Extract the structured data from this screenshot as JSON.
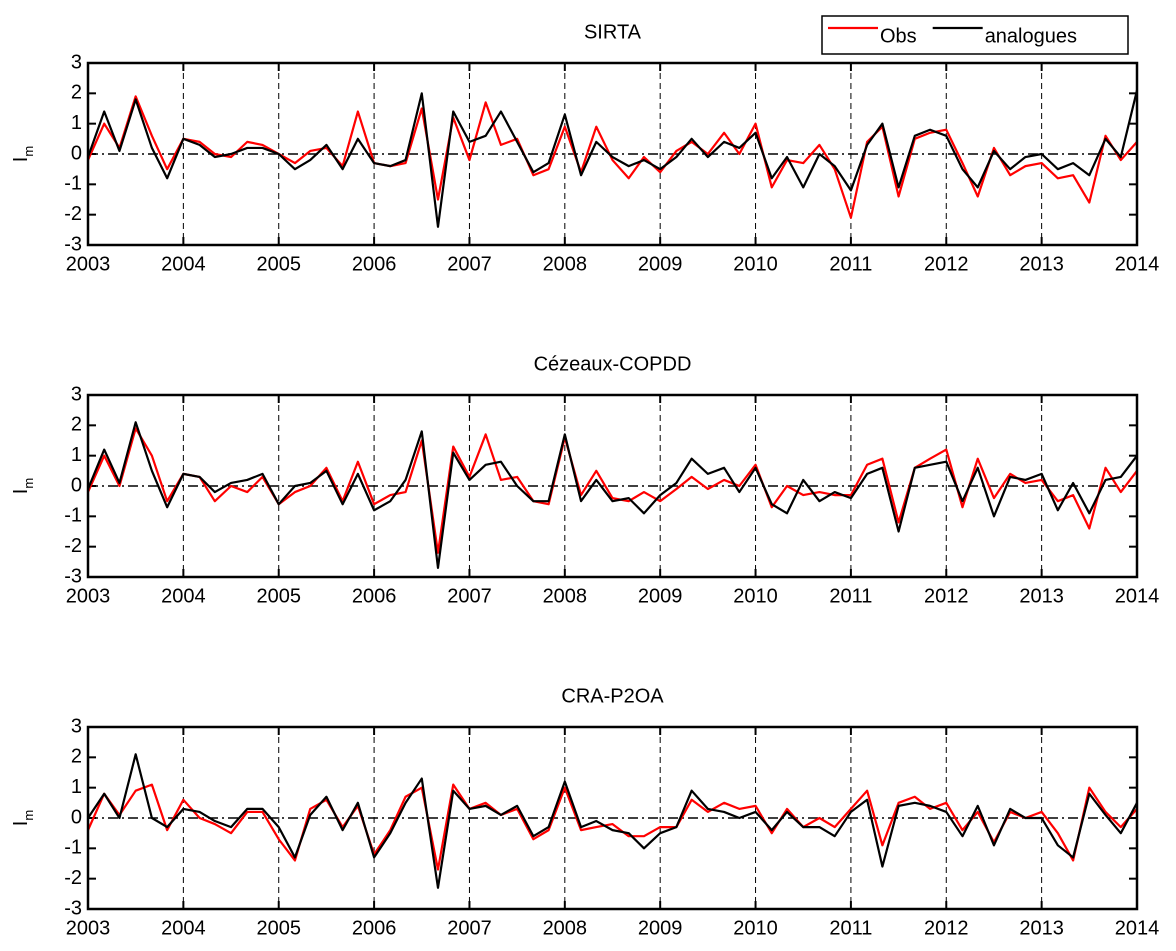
{
  "chart_data": [
    {
      "type": "line",
      "title": "SIRTA",
      "ylabel": "I",
      "ylabel_sub": "m",
      "legend": "top-right",
      "xlim": [
        2003,
        2014
      ],
      "xticks": [
        2003,
        2004,
        2005,
        2006,
        2007,
        2008,
        2009,
        2010,
        2011,
        2012,
        2013,
        2014
      ],
      "ylim": [
        -3,
        3
      ],
      "yticks": [
        -3,
        -2,
        -1,
        0,
        1,
        2,
        3
      ],
      "grid": true,
      "hline": 0,
      "x": [
        2003,
        2003.17,
        2003.33,
        2003.5,
        2003.67,
        2003.83,
        2004,
        2004.17,
        2004.33,
        2004.5,
        2004.67,
        2004.83,
        2005,
        2005.17,
        2005.33,
        2005.5,
        2005.67,
        2005.83,
        2006,
        2006.17,
        2006.33,
        2006.5,
        2006.67,
        2006.83,
        2007,
        2007.17,
        2007.33,
        2007.5,
        2007.67,
        2007.83,
        2008,
        2008.17,
        2008.33,
        2008.5,
        2008.67,
        2008.83,
        2009,
        2009.17,
        2009.33,
        2009.5,
        2009.67,
        2009.83,
        2010,
        2010.17,
        2010.33,
        2010.5,
        2010.67,
        2010.83,
        2011,
        2011.17,
        2011.33,
        2011.5,
        2011.67,
        2011.83,
        2012,
        2012.17,
        2012.33,
        2012.5,
        2012.67,
        2012.83,
        2013,
        2013.17,
        2013.33,
        2013.5,
        2013.67,
        2013.83,
        2014
      ],
      "series": [
        {
          "name": "Obs",
          "color": "#ff0000",
          "values": [
            -0.2,
            1.0,
            0.2,
            1.9,
            0.6,
            -0.5,
            0.5,
            0.4,
            0.0,
            -0.1,
            0.4,
            0.3,
            0.0,
            -0.3,
            0.1,
            0.2,
            -0.4,
            1.4,
            -0.3,
            -0.4,
            -0.3,
            1.5,
            -1.5,
            1.2,
            -0.2,
            1.7,
            0.3,
            0.5,
            -0.7,
            -0.5,
            0.9,
            -0.6,
            0.9,
            -0.2,
            -0.8,
            -0.1,
            -0.6,
            0.1,
            0.4,
            0.0,
            0.7,
            0.0,
            1.0,
            -1.1,
            -0.2,
            -0.3,
            0.3,
            -0.5,
            -2.1,
            0.4,
            0.9,
            -1.4,
            0.5,
            0.7,
            0.8,
            -0.3,
            -1.4,
            0.2,
            -0.7,
            -0.4,
            -0.3,
            -0.8,
            -0.7,
            -1.6,
            0.6,
            -0.2,
            0.4
          ]
        },
        {
          "name": "analogues",
          "color": "#000000",
          "values": [
            -0.1,
            1.4,
            0.1,
            1.8,
            0.2,
            -0.8,
            0.5,
            0.3,
            -0.1,
            0.0,
            0.2,
            0.2,
            0.0,
            -0.5,
            -0.2,
            0.3,
            -0.5,
            0.5,
            -0.3,
            -0.4,
            -0.2,
            2.0,
            -2.4,
            1.4,
            0.4,
            0.6,
            1.4,
            0.4,
            -0.6,
            -0.3,
            1.3,
            -0.7,
            0.4,
            -0.1,
            -0.4,
            -0.2,
            -0.5,
            -0.1,
            0.5,
            -0.1,
            0.4,
            0.2,
            0.7,
            -0.8,
            -0.1,
            -1.1,
            0.0,
            -0.4,
            -1.2,
            0.3,
            1.0,
            -1.1,
            0.6,
            0.8,
            0.6,
            -0.5,
            -1.1,
            0.1,
            -0.5,
            -0.1,
            0.0,
            -0.5,
            -0.3,
            -0.7,
            0.5,
            -0.1,
            2.1
          ]
        }
      ]
    },
    {
      "type": "line",
      "title": "Cézeaux-COPDD",
      "ylabel": "I",
      "ylabel_sub": "m",
      "xlim": [
        2003,
        2014
      ],
      "xticks": [
        2003,
        2004,
        2005,
        2006,
        2007,
        2008,
        2009,
        2010,
        2011,
        2012,
        2013,
        2014
      ],
      "ylim": [
        -3,
        3
      ],
      "yticks": [
        -3,
        -2,
        -1,
        0,
        1,
        2,
        3
      ],
      "grid": true,
      "hline": 0,
      "x": [
        2003,
        2003.17,
        2003.33,
        2003.5,
        2003.67,
        2003.83,
        2004,
        2004.17,
        2004.33,
        2004.5,
        2004.67,
        2004.83,
        2005,
        2005.17,
        2005.33,
        2005.5,
        2005.67,
        2005.83,
        2006,
        2006.17,
        2006.33,
        2006.5,
        2006.67,
        2006.83,
        2007,
        2007.17,
        2007.33,
        2007.5,
        2007.67,
        2007.83,
        2008,
        2008.17,
        2008.33,
        2008.5,
        2008.67,
        2008.83,
        2009,
        2009.17,
        2009.33,
        2009.5,
        2009.67,
        2009.83,
        2010,
        2010.17,
        2010.33,
        2010.5,
        2010.67,
        2010.83,
        2011,
        2011.17,
        2011.33,
        2011.5,
        2011.67,
        2011.83,
        2012,
        2012.17,
        2012.33,
        2012.5,
        2012.67,
        2012.83,
        2013,
        2013.17,
        2013.33,
        2013.5,
        2013.67,
        2013.83,
        2014
      ],
      "series": [
        {
          "name": "Obs",
          "color": "#ff0000",
          "values": [
            -0.2,
            1.0,
            0.0,
            1.9,
            1.0,
            -0.5,
            0.4,
            0.3,
            -0.5,
            0.0,
            -0.2,
            0.3,
            -0.6,
            -0.2,
            0.0,
            0.6,
            -0.5,
            0.8,
            -0.6,
            -0.3,
            -0.2,
            1.5,
            -2.2,
            1.3,
            0.3,
            1.7,
            0.2,
            0.3,
            -0.5,
            -0.6,
            1.6,
            -0.3,
            0.5,
            -0.4,
            -0.5,
            -0.2,
            -0.5,
            -0.1,
            0.3,
            -0.1,
            0.2,
            0.0,
            0.7,
            -0.7,
            0.0,
            -0.3,
            -0.2,
            -0.3,
            -0.3,
            0.7,
            0.9,
            -1.2,
            0.6,
            0.9,
            1.2,
            -0.7,
            0.9,
            -0.4,
            0.4,
            0.1,
            0.2,
            -0.5,
            -0.3,
            -1.4,
            0.6,
            -0.2,
            0.5
          ]
        },
        {
          "name": "analogues",
          "color": "#000000",
          "values": [
            -0.1,
            1.2,
            0.1,
            2.1,
            0.5,
            -0.7,
            0.4,
            0.3,
            -0.2,
            0.1,
            0.2,
            0.4,
            -0.6,
            0.0,
            0.1,
            0.5,
            -0.6,
            0.4,
            -0.8,
            -0.5,
            0.2,
            1.8,
            -2.7,
            1.1,
            0.2,
            0.7,
            0.8,
            0.0,
            -0.5,
            -0.5,
            1.7,
            -0.5,
            0.2,
            -0.5,
            -0.4,
            -0.9,
            -0.3,
            0.1,
            0.9,
            0.4,
            0.6,
            -0.2,
            0.6,
            -0.6,
            -0.9,
            0.2,
            -0.5,
            -0.2,
            -0.4,
            0.4,
            0.6,
            -1.5,
            0.6,
            0.7,
            0.8,
            -0.5,
            0.6,
            -1.0,
            0.3,
            0.2,
            0.4,
            -0.8,
            0.1,
            -0.9,
            0.2,
            0.3,
            1.0
          ]
        }
      ]
    },
    {
      "type": "line",
      "title": "CRA-P2OA",
      "ylabel": "I",
      "ylabel_sub": "m",
      "xlim": [
        2003,
        2014
      ],
      "xticks": [
        2003,
        2004,
        2005,
        2006,
        2007,
        2008,
        2009,
        2010,
        2011,
        2012,
        2013,
        2014
      ],
      "ylim": [
        -3,
        3
      ],
      "yticks": [
        -3,
        -2,
        -1,
        0,
        1,
        2,
        3
      ],
      "grid": true,
      "hline": 0,
      "x": [
        2003,
        2003.17,
        2003.33,
        2003.5,
        2003.67,
        2003.83,
        2004,
        2004.17,
        2004.33,
        2004.5,
        2004.67,
        2004.83,
        2005,
        2005.17,
        2005.33,
        2005.5,
        2005.67,
        2005.83,
        2006,
        2006.17,
        2006.33,
        2006.5,
        2006.67,
        2006.83,
        2007,
        2007.17,
        2007.33,
        2007.5,
        2007.67,
        2007.83,
        2008,
        2008.17,
        2008.33,
        2008.5,
        2008.67,
        2008.83,
        2009,
        2009.17,
        2009.33,
        2009.5,
        2009.67,
        2009.83,
        2010,
        2010.17,
        2010.33,
        2010.5,
        2010.67,
        2010.83,
        2011,
        2011.17,
        2011.33,
        2011.5,
        2011.67,
        2011.83,
        2012,
        2012.17,
        2012.33,
        2012.5,
        2012.67,
        2012.83,
        2013,
        2013.17,
        2013.33,
        2013.5,
        2013.67,
        2013.83,
        2014
      ],
      "series": [
        {
          "name": "Obs",
          "color": "#ff0000",
          "values": [
            -0.4,
            0.8,
            0.1,
            0.9,
            1.1,
            -0.4,
            0.6,
            0.0,
            -0.2,
            -0.5,
            0.2,
            0.2,
            -0.7,
            -1.4,
            0.3,
            0.6,
            -0.3,
            0.4,
            -1.2,
            -0.4,
            0.7,
            1.0,
            -1.7,
            1.1,
            0.3,
            0.5,
            0.1,
            0.3,
            -0.7,
            -0.4,
            1.0,
            -0.4,
            -0.3,
            -0.2,
            -0.6,
            -0.6,
            -0.3,
            -0.3,
            0.6,
            0.2,
            0.5,
            0.3,
            0.4,
            -0.5,
            0.3,
            -0.3,
            0.0,
            -0.3,
            0.3,
            0.9,
            -0.9,
            0.5,
            0.7,
            0.3,
            0.5,
            -0.4,
            0.2,
            -0.8,
            0.2,
            0.0,
            0.2,
            -0.5,
            -1.4,
            1.0,
            0.2,
            -0.3,
            0.3
          ]
        },
        {
          "name": "analogues",
          "color": "#000000",
          "values": [
            0.0,
            0.8,
            0.0,
            2.1,
            0.0,
            -0.3,
            0.3,
            0.2,
            -0.1,
            -0.3,
            0.3,
            0.3,
            -0.3,
            -1.3,
            0.1,
            0.7,
            -0.4,
            0.5,
            -1.3,
            -0.5,
            0.5,
            1.3,
            -2.3,
            0.9,
            0.3,
            0.4,
            0.1,
            0.4,
            -0.6,
            -0.3,
            1.2,
            -0.3,
            -0.1,
            -0.4,
            -0.5,
            -1.0,
            -0.5,
            -0.3,
            0.9,
            0.3,
            0.2,
            0.0,
            0.2,
            -0.4,
            0.2,
            -0.3,
            -0.3,
            -0.6,
            0.2,
            0.6,
            -1.6,
            0.4,
            0.5,
            0.4,
            0.2,
            -0.6,
            0.4,
            -0.9,
            0.3,
            0.0,
            0.0,
            -0.9,
            -1.3,
            0.8,
            0.1,
            -0.5,
            0.5
          ]
        }
      ]
    }
  ]
}
